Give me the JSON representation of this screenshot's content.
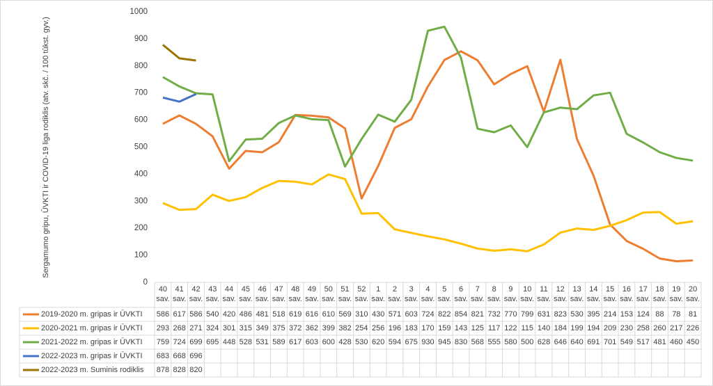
{
  "chart_data": {
    "type": "line",
    "y_label": "Sergamumo gripu, ŪVKTI ir COVID-19 liga rodiklis (atv. skč. / 100 tūkst. gyv.)",
    "categories": [
      "40 sav.",
      "41 sav.",
      "42 sav.",
      "43 sav.",
      "44 sav.",
      "45 sav.",
      "46 sav.",
      "47 sav.",
      "48 sav.",
      "49 sav.",
      "50 sav.",
      "51 sav.",
      "52 sav.",
      "1 sav.",
      "2 sav.",
      "3 sav.",
      "4 sav.",
      "5 sav.",
      "6 sav.",
      "7 sav.",
      "8 sav.",
      "9 sav.",
      "10 sav.",
      "11 sav.",
      "12 sav.",
      "13 sav.",
      "14 sav.",
      "15 sav.",
      "16 sav.",
      "17 sav.",
      "18 sav.",
      "19 sav.",
      "20 sav."
    ],
    "ylim": [
      0,
      1000
    ],
    "yticks": [
      0,
      100,
      200,
      300,
      400,
      500,
      600,
      700,
      800,
      900,
      1000
    ],
    "series": [
      {
        "name": "2019-2020 m. gripas ir ŪVKTI",
        "color": "#ed7d31",
        "values": [
          586,
          617,
          586,
          540,
          420,
          486,
          481,
          518,
          619,
          616,
          610,
          569,
          310,
          430,
          571,
          603,
          724,
          822,
          854,
          821,
          732,
          770,
          799,
          631,
          823,
          530,
          395,
          214,
          153,
          124,
          88,
          78,
          81
        ]
      },
      {
        "name": "2020-2021 m. gripas ir ŪVKTI",
        "color": "#ffc000",
        "values": [
          293,
          268,
          271,
          324,
          301,
          315,
          349,
          375,
          372,
          362,
          399,
          382,
          254,
          256,
          196,
          183,
          170,
          159,
          143,
          125,
          117,
          122,
          115,
          140,
          184,
          199,
          194,
          209,
          230,
          258,
          260,
          217,
          226
        ]
      },
      {
        "name": "2021-2022 m. gripas ir ŪVKTI",
        "color": "#70ad47",
        "values": [
          759,
          724,
          699,
          695,
          448,
          528,
          531,
          589,
          617,
          603,
          600,
          428,
          530,
          620,
          594,
          675,
          930,
          945,
          830,
          568,
          555,
          580,
          500,
          628,
          646,
          640,
          691,
          701,
          549,
          517,
          481,
          460,
          450
        ]
      },
      {
        "name": "2022-2023 m. gripas ir ŪVKTI",
        "color": "#4472c4",
        "values": [
          683,
          668,
          696,
          null,
          null,
          null,
          null,
          null,
          null,
          null,
          null,
          null,
          null,
          null,
          null,
          null,
          null,
          null,
          null,
          null,
          null,
          null,
          null,
          null,
          null,
          null,
          null,
          null,
          null,
          null,
          null,
          null,
          null
        ]
      },
      {
        "name": "2022-2023 m. Suminis rodiklis",
        "color": "#9c7600",
        "values": [
          878,
          828,
          820,
          null,
          null,
          null,
          null,
          null,
          null,
          null,
          null,
          null,
          null,
          null,
          null,
          null,
          null,
          null,
          null,
          null,
          null,
          null,
          null,
          null,
          null,
          null,
          null,
          null,
          null,
          null,
          null,
          null,
          null
        ]
      }
    ]
  }
}
